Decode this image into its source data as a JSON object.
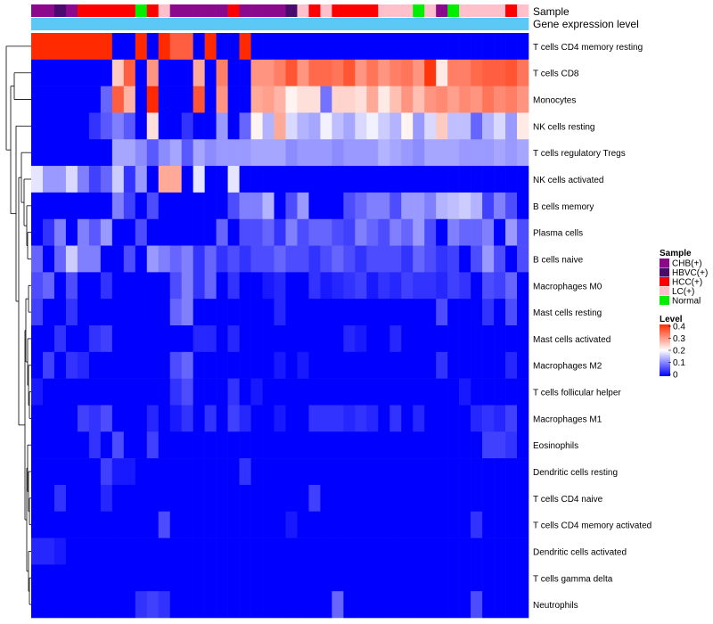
{
  "chart_data": {
    "type": "heatmap",
    "title": "",
    "annotation_labels": [
      "Sample",
      "Gene expression level"
    ],
    "rows": [
      "T cells CD4 memory resting",
      "T cells CD8",
      "Monocytes",
      "NK cells resting",
      "T cells regulatory  Tregs",
      "NK cells activated",
      "B cells memory",
      "Plasma cells",
      "B cells naive",
      "Macrophages M0",
      "Mast cells resting",
      "Mast cells activated",
      "Macrophages M2",
      "T cells follicular helper",
      "Macrophages M1",
      "Eosinophils",
      "Dendritic cells resting",
      "T cells CD4 naive",
      "T cells CD4 memory activated",
      "Dendritic cells activated",
      "T cells gamma delta",
      "Neutrophils"
    ],
    "sample_groups": [
      "CHB",
      "CHB",
      "HBVC",
      "CHB",
      "HCC",
      "HCC",
      "HCC",
      "HCC",
      "HCC",
      "Normal",
      "HCC",
      "LC",
      "CHB",
      "CHB",
      "CHB",
      "CHB",
      "CHB",
      "HCC",
      "CHB",
      "CHB",
      "CHB",
      "CHB",
      "HBVC",
      "LC",
      "HCC",
      "LC",
      "HCC",
      "HCC",
      "HCC",
      "HCC",
      "LC",
      "LC",
      "LC",
      "Normal",
      "LC",
      "CHB",
      "Normal",
      "LC",
      "LC",
      "LC",
      "LC",
      "HCC",
      "LC"
    ],
    "gene_expression_level": [
      0.9,
      0.9,
      0.9,
      0.9,
      0.9,
      0.9,
      0.9,
      0.9,
      0.9,
      0.9,
      0.9,
      0.9,
      0.9,
      0.9,
      0.9,
      0.9,
      0.9,
      0.9,
      0.9,
      0.9,
      0.9,
      0.9,
      0.9,
      0.9,
      0.9,
      0.9,
      0.9,
      0.9,
      0.9,
      0.9,
      0.9,
      0.9,
      0.9,
      0.9,
      0.9,
      0.9,
      0.9,
      0.9,
      0.9,
      0.9,
      0.9,
      0.9,
      0.9
    ],
    "values": [
      [
        0.4,
        0.4,
        0.4,
        0.4,
        0.4,
        0.4,
        0.4,
        0.0,
        0.0,
        0.4,
        0.0,
        0.4,
        0.35,
        0.35,
        0.0,
        0.4,
        0.0,
        0.0,
        0.4,
        0.0,
        0.0,
        0.0,
        0.0,
        0.0,
        0.0,
        0.0,
        0.0,
        0.0,
        0.0,
        0.0,
        0.0,
        0.0,
        0.0,
        0.0,
        0.0,
        0.0,
        0.0,
        0.0,
        0.0,
        0.0,
        0.0,
        0.0,
        0.0
      ],
      [
        0.0,
        0.0,
        0.0,
        0.0,
        0.0,
        0.0,
        0.0,
        0.25,
        0.35,
        0.0,
        0.3,
        0.0,
        0.0,
        0.0,
        0.28,
        0.0,
        0.32,
        0.0,
        0.0,
        0.3,
        0.3,
        0.32,
        0.36,
        0.3,
        0.34,
        0.34,
        0.33,
        0.36,
        0.3,
        0.33,
        0.3,
        0.32,
        0.33,
        0.3,
        0.39,
        0.22,
        0.32,
        0.32,
        0.34,
        0.35,
        0.35,
        0.36,
        0.33
      ],
      [
        0.0,
        0.0,
        0.0,
        0.0,
        0.0,
        0.0,
        0.08,
        0.35,
        0.27,
        0.0,
        0.4,
        0.0,
        0.0,
        0.0,
        0.36,
        0.0,
        0.3,
        0.0,
        0.0,
        0.28,
        0.29,
        0.27,
        0.21,
        0.23,
        0.23,
        0.09,
        0.24,
        0.24,
        0.23,
        0.28,
        0.22,
        0.26,
        0.3,
        0.26,
        0.3,
        0.31,
        0.29,
        0.31,
        0.3,
        0.33,
        0.31,
        0.32,
        0.3
      ],
      [
        0.0,
        0.0,
        0.0,
        0.0,
        0.0,
        0.04,
        0.07,
        0.1,
        0.07,
        0.0,
        0.23,
        0.0,
        0.0,
        0.04,
        0.0,
        0.0,
        0.12,
        0.0,
        0.08,
        0.21,
        0.14,
        0.28,
        0.17,
        0.14,
        0.13,
        0.19,
        0.15,
        0.13,
        0.17,
        0.19,
        0.16,
        0.14,
        0.21,
        0.12,
        0.17,
        0.25,
        0.15,
        0.15,
        0.08,
        0.14,
        0.17,
        0.12,
        0.22
      ],
      [
        0.0,
        0.0,
        0.0,
        0.0,
        0.0,
        0.0,
        0.0,
        0.13,
        0.13,
        0.11,
        0.07,
        0.11,
        0.13,
        0.07,
        0.13,
        0.11,
        0.12,
        0.12,
        0.12,
        0.13,
        0.13,
        0.13,
        0.11,
        0.12,
        0.12,
        0.12,
        0.11,
        0.12,
        0.12,
        0.12,
        0.14,
        0.13,
        0.12,
        0.11,
        0.13,
        0.13,
        0.13,
        0.12,
        0.12,
        0.12,
        0.13,
        0.12,
        0.13
      ],
      [
        0.18,
        0.12,
        0.12,
        0.17,
        0.1,
        0.05,
        0.08,
        0.16,
        0.04,
        0.12,
        0.0,
        0.28,
        0.28,
        0.0,
        0.18,
        0.0,
        0.0,
        0.18,
        0.0,
        0.0,
        0.0,
        0.0,
        0.0,
        0.0,
        0.0,
        0.0,
        0.0,
        0.0,
        0.0,
        0.0,
        0.0,
        0.0,
        0.0,
        0.0,
        0.0,
        0.0,
        0.0,
        0.0,
        0.0,
        0.0,
        0.0,
        0.0,
        0.0
      ],
      [
        0.0,
        0.0,
        0.0,
        0.0,
        0.0,
        0.0,
        0.0,
        0.1,
        0.05,
        0.0,
        0.06,
        0.0,
        0.0,
        0.0,
        0.0,
        0.0,
        0.0,
        0.06,
        0.1,
        0.1,
        0.14,
        0.0,
        0.06,
        0.12,
        0.0,
        0.0,
        0.0,
        0.06,
        0.08,
        0.1,
        0.1,
        0.06,
        0.12,
        0.12,
        0.1,
        0.14,
        0.15,
        0.16,
        0.14,
        0.05,
        0.1,
        0.06,
        0.0
      ],
      [
        0.0,
        0.04,
        0.1,
        0.0,
        0.1,
        0.07,
        0.12,
        0.0,
        0.0,
        0.06,
        0.0,
        0.0,
        0.0,
        0.0,
        0.0,
        0.0,
        0.08,
        0.0,
        0.06,
        0.06,
        0.08,
        0.04,
        0.1,
        0.06,
        0.08,
        0.08,
        0.06,
        0.05,
        0.1,
        0.08,
        0.06,
        0.1,
        0.08,
        0.12,
        0.06,
        0.0,
        0.1,
        0.08,
        0.08,
        0.1,
        0.0,
        0.12,
        0.06
      ],
      [
        0.08,
        0.0,
        0.08,
        0.16,
        0.1,
        0.1,
        0.0,
        0.0,
        0.06,
        0.0,
        0.12,
        0.1,
        0.08,
        0.1,
        0.04,
        0.08,
        0.04,
        0.06,
        0.04,
        0.06,
        0.06,
        0.08,
        0.06,
        0.06,
        0.04,
        0.06,
        0.08,
        0.06,
        0.04,
        0.06,
        0.06,
        0.06,
        0.04,
        0.08,
        0.06,
        0.04,
        0.05,
        0.0,
        0.06,
        0.12,
        0.06,
        0.0,
        0.06
      ],
      [
        0.06,
        0.08,
        0.0,
        0.06,
        0.0,
        0.0,
        0.04,
        0.0,
        0.0,
        0.0,
        0.0,
        0.0,
        0.06,
        0.1,
        0.04,
        0.08,
        0.0,
        0.04,
        0.0,
        0.0,
        0.02,
        0.03,
        0.0,
        0.0,
        0.04,
        0.02,
        0.03,
        0.04,
        0.05,
        0.02,
        0.04,
        0.03,
        0.05,
        0.04,
        0.04,
        0.03,
        0.05,
        0.04,
        0.0,
        0.06,
        0.05,
        0.08,
        0.0
      ],
      [
        0.05,
        0.0,
        0.0,
        0.04,
        0.0,
        0.0,
        0.0,
        0.0,
        0.0,
        0.0,
        0.0,
        0.0,
        0.08,
        0.1,
        0.0,
        0.0,
        0.0,
        0.0,
        0.0,
        0.0,
        0.0,
        0.03,
        0.0,
        0.0,
        0.0,
        0.0,
        0.0,
        0.0,
        0.0,
        0.0,
        0.0,
        0.0,
        0.0,
        0.0,
        0.0,
        0.06,
        0.0,
        0.0,
        0.0,
        0.04,
        0.0,
        0.06,
        0.0
      ],
      [
        0.0,
        0.0,
        0.04,
        0.0,
        0.0,
        0.04,
        0.05,
        0.0,
        0.0,
        0.0,
        0.0,
        0.0,
        0.0,
        0.0,
        0.03,
        0.03,
        0.0,
        0.03,
        0.0,
        0.0,
        0.0,
        0.0,
        0.0,
        0.0,
        0.0,
        0.0,
        0.0,
        0.03,
        0.02,
        0.0,
        0.0,
        0.03,
        0.0,
        0.0,
        0.0,
        0.0,
        0.0,
        0.0,
        0.0,
        0.0,
        0.0,
        0.0,
        0.0
      ],
      [
        0.0,
        0.05,
        0.0,
        0.04,
        0.03,
        0.0,
        0.0,
        0.0,
        0.0,
        0.0,
        0.0,
        0.0,
        0.06,
        0.08,
        0.0,
        0.0,
        0.0,
        0.0,
        0.0,
        0.0,
        0.0,
        0.02,
        0.0,
        0.02,
        0.0,
        0.0,
        0.0,
        0.0,
        0.0,
        0.0,
        0.0,
        0.0,
        0.0,
        0.0,
        0.0,
        0.04,
        0.0,
        0.0,
        0.0,
        0.0,
        0.0,
        0.03,
        0.0
      ],
      [
        0.02,
        0.0,
        0.0,
        0.0,
        0.0,
        0.0,
        0.0,
        0.0,
        0.0,
        0.0,
        0.0,
        0.0,
        0.04,
        0.06,
        0.0,
        0.0,
        0.0,
        0.04,
        0.0,
        0.02,
        0.0,
        0.0,
        0.0,
        0.0,
        0.0,
        0.0,
        0.0,
        0.0,
        0.0,
        0.0,
        0.0,
        0.0,
        0.0,
        0.0,
        0.0,
        0.0,
        0.0,
        0.02,
        0.0,
        0.0,
        0.0,
        0.0,
        0.0
      ],
      [
        0.0,
        0.0,
        0.0,
        0.0,
        0.05,
        0.04,
        0.06,
        0.0,
        0.0,
        0.0,
        0.03,
        0.0,
        0.02,
        0.04,
        0.0,
        0.04,
        0.0,
        0.05,
        0.03,
        0.0,
        0.0,
        0.02,
        0.0,
        0.0,
        0.04,
        0.04,
        0.04,
        0.03,
        0.04,
        0.03,
        0.0,
        0.04,
        0.0,
        0.03,
        0.0,
        0.0,
        0.0,
        0.0,
        0.03,
        0.04,
        0.03,
        0.05,
        0.0
      ],
      [
        0.0,
        0.0,
        0.0,
        0.0,
        0.0,
        0.04,
        0.0,
        0.06,
        0.0,
        0.0,
        0.05,
        0.0,
        0.0,
        0.0,
        0.0,
        0.0,
        0.0,
        0.0,
        0.0,
        0.0,
        0.0,
        0.0,
        0.0,
        0.0,
        0.0,
        0.0,
        0.0,
        0.0,
        0.0,
        0.0,
        0.0,
        0.0,
        0.0,
        0.0,
        0.0,
        0.0,
        0.0,
        0.0,
        0.0,
        0.05,
        0.05,
        0.04,
        0.0
      ],
      [
        0.0,
        0.0,
        0.0,
        0.0,
        0.0,
        0.0,
        0.05,
        0.02,
        0.02,
        0.0,
        0.0,
        0.0,
        0.0,
        0.0,
        0.0,
        0.0,
        0.0,
        0.0,
        0.04,
        0.0,
        0.0,
        0.0,
        0.0,
        0.0,
        0.0,
        0.0,
        0.0,
        0.0,
        0.0,
        0.0,
        0.0,
        0.0,
        0.0,
        0.0,
        0.0,
        0.0,
        0.0,
        0.0,
        0.0,
        0.0,
        0.0,
        0.0,
        0.0
      ],
      [
        0.0,
        0.0,
        0.04,
        0.0,
        0.0,
        0.0,
        0.03,
        0.0,
        0.0,
        0.0,
        0.0,
        0.0,
        0.0,
        0.0,
        0.0,
        0.0,
        0.0,
        0.0,
        0.0,
        0.0,
        0.0,
        0.0,
        0.0,
        0.0,
        0.05,
        0.0,
        0.0,
        0.0,
        0.0,
        0.0,
        0.0,
        0.0,
        0.0,
        0.0,
        0.0,
        0.0,
        0.0,
        0.0,
        0.0,
        0.0,
        0.0,
        0.0,
        0.0
      ],
      [
        0.0,
        0.0,
        0.0,
        0.0,
        0.0,
        0.0,
        0.0,
        0.0,
        0.0,
        0.0,
        0.0,
        0.06,
        0.0,
        0.0,
        0.0,
        0.0,
        0.0,
        0.0,
        0.0,
        0.0,
        0.0,
        0.0,
        0.02,
        0.0,
        0.0,
        0.0,
        0.0,
        0.0,
        0.0,
        0.0,
        0.0,
        0.0,
        0.0,
        0.0,
        0.0,
        0.0,
        0.0,
        0.0,
        0.04,
        0.0,
        0.0,
        0.0,
        0.0
      ],
      [
        0.03,
        0.03,
        0.02,
        0.0,
        0.0,
        0.0,
        0.0,
        0.0,
        0.0,
        0.0,
        0.0,
        0.0,
        0.0,
        0.0,
        0.0,
        0.0,
        0.0,
        0.0,
        0.0,
        0.0,
        0.0,
        0.0,
        0.0,
        0.0,
        0.0,
        0.0,
        0.0,
        0.0,
        0.0,
        0.0,
        0.0,
        0.0,
        0.0,
        0.0,
        0.0,
        0.0,
        0.0,
        0.0,
        0.0,
        0.0,
        0.0,
        0.0,
        0.0
      ],
      [
        0.0,
        0.0,
        0.0,
        0.0,
        0.0,
        0.0,
        0.0,
        0.0,
        0.0,
        0.0,
        0.0,
        0.0,
        0.0,
        0.0,
        0.0,
        0.0,
        0.0,
        0.0,
        0.0,
        0.0,
        0.0,
        0.0,
        0.0,
        0.0,
        0.0,
        0.0,
        0.0,
        0.0,
        0.0,
        0.0,
        0.0,
        0.0,
        0.0,
        0.0,
        0.0,
        0.0,
        0.0,
        0.0,
        0.0,
        0.0,
        0.0,
        0.0,
        0.0
      ],
      [
        0.0,
        0.0,
        0.0,
        0.0,
        0.0,
        0.0,
        0.0,
        0.0,
        0.0,
        0.04,
        0.05,
        0.04,
        0.0,
        0.0,
        0.0,
        0.0,
        0.0,
        0.0,
        0.0,
        0.0,
        0.0,
        0.0,
        0.0,
        0.0,
        0.0,
        0.0,
        0.08,
        0.0,
        0.0,
        0.0,
        0.0,
        0.0,
        0.0,
        0.0,
        0.0,
        0.0,
        0.0,
        0.0,
        0.06,
        0.0,
        0.0,
        0.0,
        0.0
      ]
    ],
    "legend": {
      "sample": {
        "title": "Sample",
        "entries": [
          {
            "key": "CHB",
            "label": "CHB(+)",
            "color": "#8b0a8b"
          },
          {
            "key": "HBVC",
            "label": "HBVC(+)",
            "color": "#4b0a6e"
          },
          {
            "key": "HCC",
            "label": "HCC(+)",
            "color": "#ff0000"
          },
          {
            "key": "LC",
            "label": "LC(+)",
            "color": "#ffc0cb"
          },
          {
            "key": "Normal",
            "label": "Normal",
            "color": "#00ee00"
          }
        ]
      },
      "level": {
        "title": "Level",
        "ticks": [
          "0.4",
          "0.3",
          "0.2",
          "0.1",
          "0"
        ],
        "range": [
          0,
          0.4
        ]
      }
    },
    "colors": {
      "low": "#0000ff",
      "mid": "#ffffff",
      "high": "#ff2a00",
      "expression_bar": "#5bc8f5"
    }
  }
}
